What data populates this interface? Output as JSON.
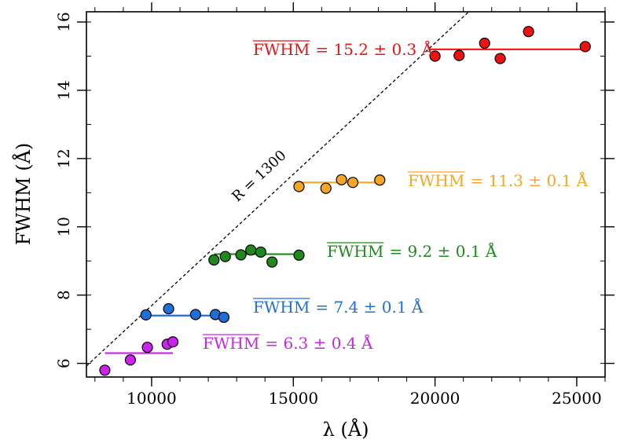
{
  "chart_data": {
    "type": "scatter",
    "title": "",
    "xlabel": "λ (Å)",
    "ylabel": "FWHM (Å)",
    "xlim": [
      7700,
      26000
    ],
    "ylim": [
      5.6,
      16.3
    ],
    "x_ticks": [
      10000,
      15000,
      20000,
      25000
    ],
    "x_tick_labels": [
      "10000",
      "15000",
      "20000",
      "25000"
    ],
    "y_ticks": [
      6,
      8,
      10,
      12,
      14,
      16
    ],
    "y_tick_labels": [
      "6",
      "8",
      "10",
      "12",
      "14",
      "16"
    ],
    "x_minor_step": 1000,
    "y_minor_step": 1,
    "grid": false,
    "resolution_line": {
      "label": "R = 1300",
      "R": 1300,
      "style": "dashed",
      "color": "#000000"
    },
    "series": [
      {
        "name": "red",
        "color": "#ee1111",
        "x": [
          20000,
          20850,
          21750,
          22300,
          23300,
          25300
        ],
        "y": [
          15.0,
          15.02,
          15.38,
          14.93,
          15.72,
          15.28
        ],
        "mean": 15.2,
        "mean_range": [
          19800,
          25300
        ],
        "annotation_prefix": "FWHM",
        "annotation_value": "= 15.2 ± 0.3 Å"
      },
      {
        "name": "orange",
        "color": "#f5a623",
        "x": [
          15200,
          16150,
          16700,
          17100,
          18050
        ],
        "y": [
          11.18,
          11.13,
          11.38,
          11.3,
          11.37
        ],
        "mean": 11.3,
        "mean_range": [
          15000,
          18100
        ],
        "annotation_prefix": "FWHM",
        "annotation_value": "= 11.3 ± 0.1 Å"
      },
      {
        "name": "green",
        "color": "#1e8a1e",
        "x": [
          12200,
          12600,
          13150,
          13500,
          13850,
          14250,
          15200
        ],
        "y": [
          9.03,
          9.13,
          9.18,
          9.32,
          9.26,
          8.97,
          9.17
        ],
        "mean": 9.2,
        "mean_range": [
          12200,
          15200
        ],
        "annotation_prefix": "FWHM",
        "annotation_value": "= 9.2 ± 0.1 Å"
      },
      {
        "name": "blue",
        "color": "#1f6fdb",
        "x": [
          9800,
          10600,
          11550,
          12250,
          12550
        ],
        "y": [
          7.42,
          7.6,
          7.43,
          7.43,
          7.35
        ],
        "mean": 7.4,
        "mean_range": [
          9800,
          12550
        ],
        "annotation_prefix": "FWHM",
        "annotation_value": "= 7.4 ± 0.1 Å"
      },
      {
        "name": "purple",
        "color": "#cc22ee",
        "x": [
          8350,
          9250,
          9850,
          10550,
          10750
        ],
        "y": [
          5.8,
          6.1,
          6.47,
          6.56,
          6.63
        ],
        "mean": 6.3,
        "mean_range": [
          8350,
          10750
        ],
        "annotation_prefix": "FWHM",
        "annotation_value": "= 6.3 ± 0.4 Å"
      }
    ]
  }
}
